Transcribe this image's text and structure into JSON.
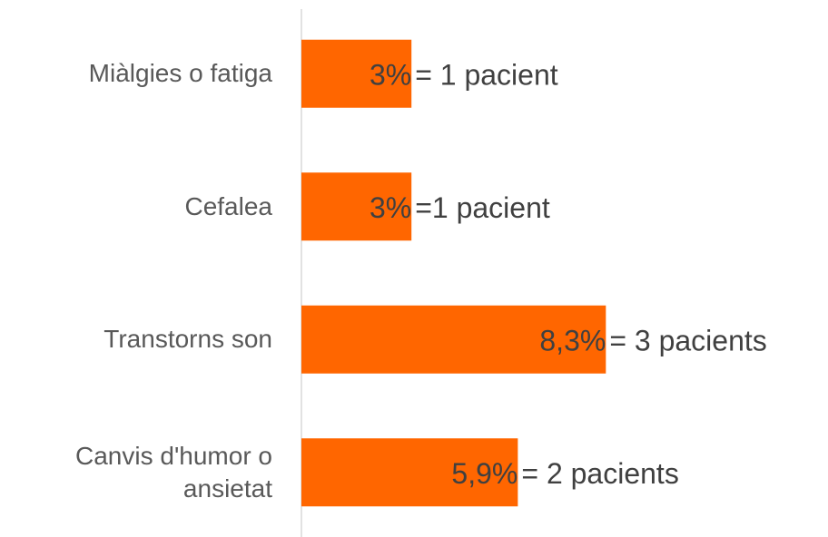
{
  "chart_data": {
    "type": "barh",
    "categories": [
      "Miàlgies o fatiga",
      "Cefalea",
      "Transtorns son",
      "Canvis d'humor o ansietat"
    ],
    "values": [
      3,
      3,
      8.3,
      5.9
    ],
    "value_labels": [
      "3%",
      "3%",
      "8,3%",
      "5,9%"
    ],
    "annotations": [
      "= 1 pacient",
      "=1 pacient",
      "= 3 pacients",
      "= 2 pacients"
    ],
    "color": "#ff6600",
    "xlim": [
      0,
      10
    ]
  }
}
